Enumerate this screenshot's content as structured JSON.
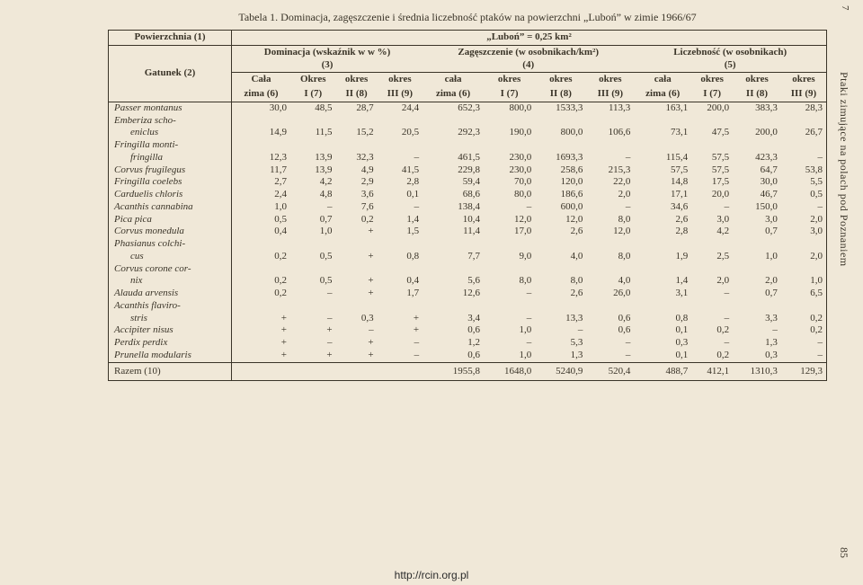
{
  "caption": "Tabela 1. Dominacja, zagęszczenie i średnia liczebność ptaków na powierzchni „Luboń” w zimie 1966/67",
  "header": {
    "col1": "Powierzchnia (1)",
    "right_top": "„Luboń” = 0,25 km²",
    "col1b": "Gatunek (2)",
    "g1": "Dominacja (wskaźnik w w %)",
    "g1n": "(3)",
    "g2": "Zagęszczenie (w osobnikach/km²)",
    "g2n": "(4)",
    "g3": "Liczebność (w osobnikach)",
    "g3n": "(5)",
    "sub": [
      "Cała",
      "Okres",
      "okres",
      "okres",
      "cała",
      "okres",
      "okres",
      "okres",
      "cała",
      "okres",
      "okres",
      "okres"
    ],
    "sub2": [
      "zima (6)",
      "I (7)",
      "II (8)",
      "III (9)",
      "zima (6)",
      "I (7)",
      "II (8)",
      "III (9)",
      "zima (6)",
      "I (7)",
      "II (8)",
      "III (9)"
    ]
  },
  "rows": [
    {
      "name": "Passer montanus",
      "v": [
        "30,0",
        "48,5",
        "28,7",
        "24,4",
        "652,3",
        "800,0",
        "1533,3",
        "113,3",
        "163,1",
        "200,0",
        "383,3",
        "28,3"
      ]
    },
    {
      "name": "Emberiza schoeniclus",
      "multi": true,
      "lines": [
        "Emberiza scho-",
        "eniclus"
      ],
      "v": [
        "14,9",
        "11,5",
        "15,2",
        "20,5",
        "292,3",
        "190,0",
        "800,0",
        "106,6",
        "73,1",
        "47,5",
        "200,0",
        "26,7"
      ]
    },
    {
      "name": "Fringilla montifringilla",
      "multi": true,
      "lines": [
        "Fringilla monti-",
        "fringilla"
      ],
      "v": [
        "12,3",
        "13,9",
        "32,3",
        "–",
        "461,5",
        "230,0",
        "1693,3",
        "–",
        "115,4",
        "57,5",
        "423,3",
        "–"
      ]
    },
    {
      "name": "Corvus frugilegus",
      "v": [
        "11,7",
        "13,9",
        "4,9",
        "41,5",
        "229,8",
        "230,0",
        "258,6",
        "215,3",
        "57,5",
        "57,5",
        "64,7",
        "53,8"
      ]
    },
    {
      "name": "Fringilla coelebs",
      "v": [
        "2,7",
        "4,2",
        "2,9",
        "2,8",
        "59,4",
        "70,0",
        "120,0",
        "22,0",
        "14,8",
        "17,5",
        "30,0",
        "5,5"
      ]
    },
    {
      "name": "Carduelis chloris",
      "v": [
        "2,4",
        "4,8",
        "3,6",
        "0,1",
        "68,6",
        "80,0",
        "186,6",
        "2,0",
        "17,1",
        "20,0",
        "46,7",
        "0,5"
      ]
    },
    {
      "name": "Acanthis cannabina",
      "v": [
        "1,0",
        "–",
        "7,6",
        "–",
        "138,4",
        "–",
        "600,0",
        "–",
        "34,6",
        "–",
        "150,0",
        "–"
      ]
    },
    {
      "name": "Pica pica",
      "v": [
        "0,5",
        "0,7",
        "0,2",
        "1,4",
        "10,4",
        "12,0",
        "12,0",
        "8,0",
        "2,6",
        "3,0",
        "3,0",
        "2,0"
      ]
    },
    {
      "name": "Corvus monedula",
      "v": [
        "0,4",
        "1,0",
        "+",
        "1,5",
        "11,4",
        "17,0",
        "2,6",
        "12,0",
        "2,8",
        "4,2",
        "0,7",
        "3,0"
      ]
    },
    {
      "name": "Phasianus colchicus",
      "multi": true,
      "lines": [
        "Phasianus colchi-",
        "cus"
      ],
      "v": [
        "0,2",
        "0,5",
        "+",
        "0,8",
        "7,7",
        "9,0",
        "4,0",
        "8,0",
        "1,9",
        "2,5",
        "1,0",
        "2,0"
      ]
    },
    {
      "name": "Corvus corone cornix",
      "multi": true,
      "lines": [
        "Corvus corone cor-",
        "nix"
      ],
      "v": [
        "0,2",
        "0,5",
        "+",
        "0,4",
        "5,6",
        "8,0",
        "8,0",
        "4,0",
        "1,4",
        "2,0",
        "2,0",
        "1,0"
      ]
    },
    {
      "name": "Alauda arvensis",
      "v": [
        "0,2",
        "–",
        "+",
        "1,7",
        "12,6",
        "–",
        "2,6",
        "26,0",
        "3,1",
        "–",
        "0,7",
        "6,5"
      ]
    },
    {
      "name": "Acanthis flavirostris",
      "multi": true,
      "lines": [
        "Acanthis flaviro-",
        "stris"
      ],
      "v": [
        "+",
        "–",
        "0,3",
        "+",
        "3,4",
        "–",
        "13,3",
        "0,6",
        "0,8",
        "–",
        "3,3",
        "0,2"
      ]
    },
    {
      "name": "Accipiter nisus",
      "v": [
        "+",
        "+",
        "–",
        "+",
        "0,6",
        "1,0",
        "–",
        "0,6",
        "0,1",
        "0,2",
        "–",
        "0,2"
      ]
    },
    {
      "name": "Perdix perdix",
      "v": [
        "+",
        "–",
        "+",
        "–",
        "1,2",
        "–",
        "5,3",
        "–",
        "0,3",
        "–",
        "1,3",
        "–"
      ]
    },
    {
      "name": "Prunella modularis",
      "v": [
        "+",
        "+",
        "+",
        "–",
        "0,6",
        "1,0",
        "1,3",
        "–",
        "0,1",
        "0,2",
        "0,3",
        "–"
      ]
    }
  ],
  "total": {
    "label": "Razem (10)",
    "v": [
      "",
      "",
      "",
      "",
      "1955,8",
      "1648,0",
      "5240,9",
      "520,4",
      "488,7",
      "412,1",
      "1310,3",
      "129,3"
    ]
  },
  "side": "Ptaki zimujące na polach pod Poznaniem",
  "topnum": "7",
  "pagenum": "85",
  "footer": "http://rcin.org.pl"
}
